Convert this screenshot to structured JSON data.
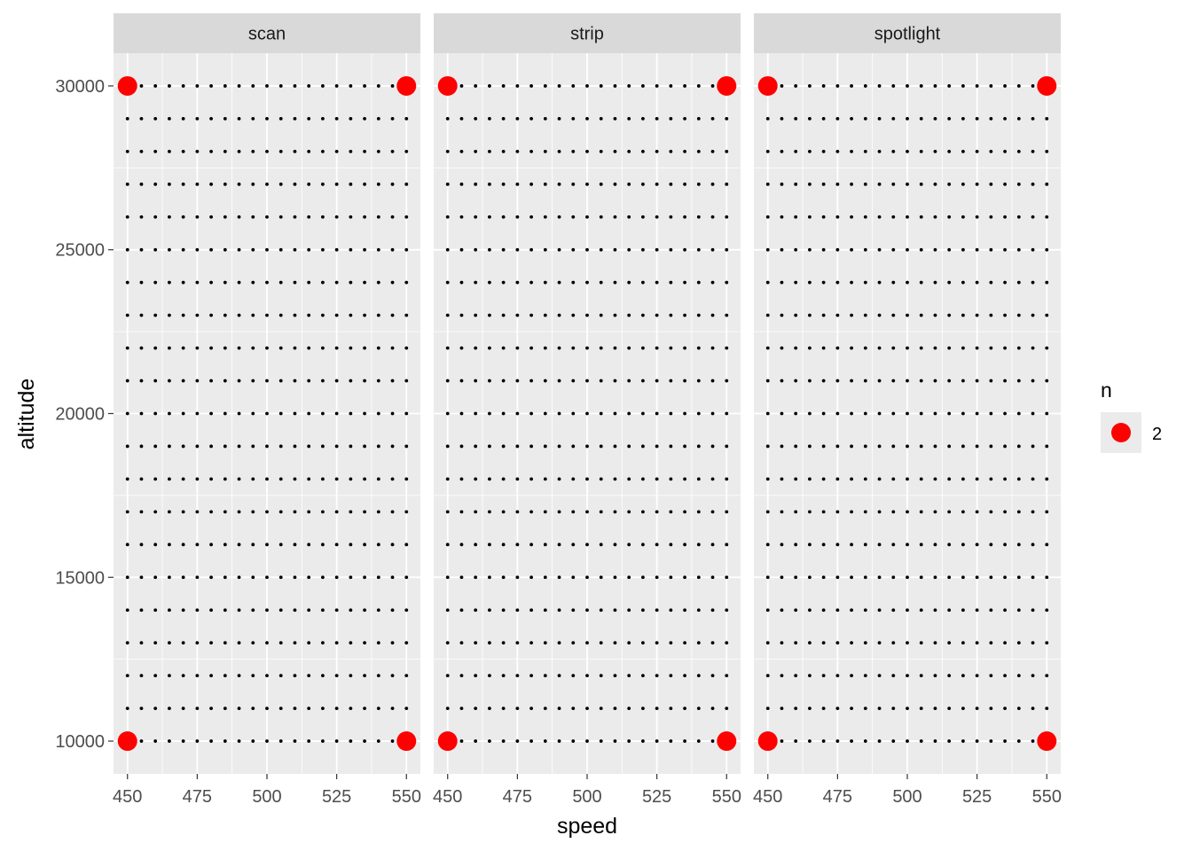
{
  "chart_data": {
    "type": "scatter",
    "facet_by": "mode",
    "facets": [
      "scan",
      "strip",
      "spotlight"
    ],
    "xlabel": "speed",
    "ylabel": "altitude",
    "xlim": [
      445,
      555
    ],
    "ylim": [
      9000,
      31000
    ],
    "x_ticks": [
      450,
      475,
      500,
      525,
      550
    ],
    "y_ticks": [
      10000,
      15000,
      20000,
      25000,
      30000
    ],
    "grid": true,
    "background": "#ebebeb",
    "strip_background": "#d9d9d9",
    "grid_points": {
      "x_start": 450,
      "x_end": 550,
      "x_step": 5,
      "y_start": 10000,
      "y_end": 30000,
      "y_step": 1000,
      "color": "#000000"
    },
    "highlight_series": {
      "name": "2",
      "color": "#ff0000",
      "points": [
        {
          "x": 450,
          "y": 30000
        },
        {
          "x": 550,
          "y": 30000
        },
        {
          "x": 450,
          "y": 10000
        },
        {
          "x": 550,
          "y": 10000
        }
      ]
    },
    "legend": {
      "title": "n",
      "placement": "right",
      "entries": [
        {
          "label": "2",
          "color": "#ff0000"
        }
      ]
    }
  }
}
